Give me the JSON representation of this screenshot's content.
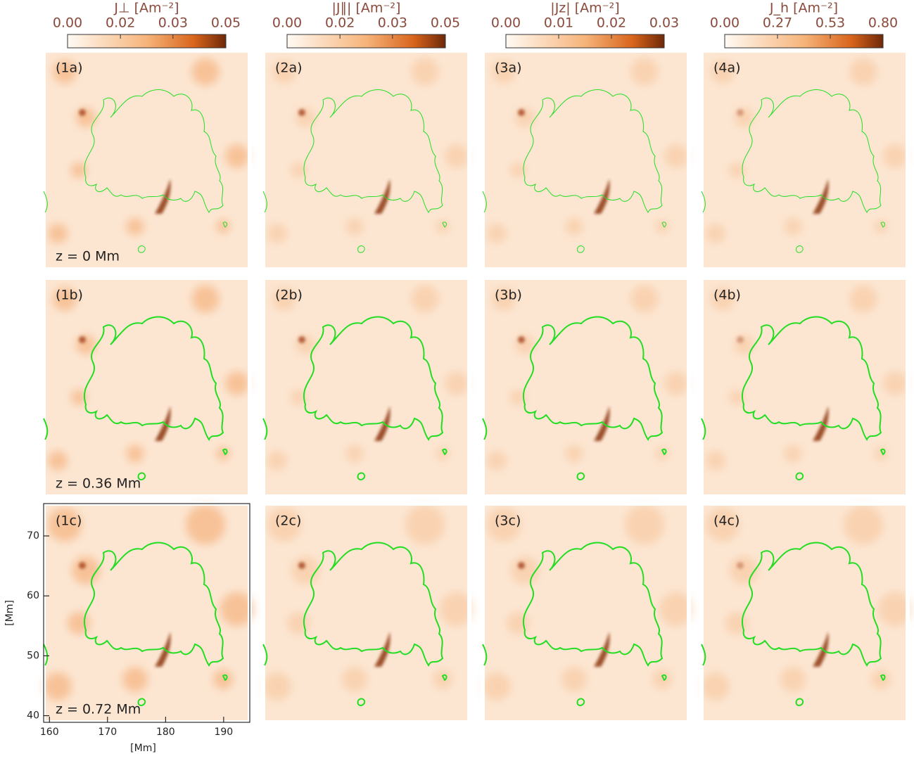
{
  "colorbars": [
    {
      "title": "J⊥ [Am⁻²]",
      "lim": [
        0,
        0.05
      ],
      "ticks": [
        {
          "value": 0,
          "label": "0.00"
        },
        {
          "value": 0.0167,
          "label": "0.02"
        },
        {
          "value": 0.0333,
          "label": "0.03"
        },
        {
          "value": 0.05,
          "label": "0.05"
        }
      ]
    },
    {
      "title": "|J∥| [Am⁻²]",
      "lim": [
        0,
        0.05
      ],
      "ticks": [
        {
          "value": 0,
          "label": "0.00"
        },
        {
          "value": 0.0167,
          "label": "0.02"
        },
        {
          "value": 0.0333,
          "label": "0.03"
        },
        {
          "value": 0.05,
          "label": "0.05"
        }
      ]
    },
    {
      "title": "|Jz| [Am⁻²]",
      "lim": [
        0,
        0.03
      ],
      "ticks": [
        {
          "value": 0,
          "label": "0.00"
        },
        {
          "value": 0.01,
          "label": "0.01"
        },
        {
          "value": 0.02,
          "label": "0.02"
        },
        {
          "value": 0.03,
          "label": "0.03"
        }
      ]
    },
    {
      "title": "J_h [Am⁻²]",
      "lim": [
        0,
        0.8
      ],
      "ticks": [
        {
          "value": 0,
          "label": "0.00"
        },
        {
          "value": 0.2667,
          "label": "0.27"
        },
        {
          "value": 0.5333,
          "label": "0.53"
        },
        {
          "value": 0.8,
          "label": "0.80"
        }
      ]
    }
  ],
  "panels": [
    [
      "(1a)",
      "(2a)",
      "(3a)",
      "(4a)"
    ],
    [
      "(1b)",
      "(2b)",
      "(3b)",
      "(4b)"
    ],
    [
      "(1c)",
      "(2c)",
      "(3c)",
      "(4c)"
    ]
  ],
  "heights": [
    "z = 0 Mm",
    "z = 0.36 Mm",
    "z = 0.72 Mm"
  ],
  "axes": {
    "xlabel": "[Mm]",
    "ylabel": "[Mm]",
    "xlim": [
      159,
      194.5
    ],
    "ylim": [
      38.9,
      75.4
    ],
    "xticks": [
      160,
      170,
      180,
      190
    ],
    "yticks": [
      40,
      50,
      60,
      70
    ]
  }
}
